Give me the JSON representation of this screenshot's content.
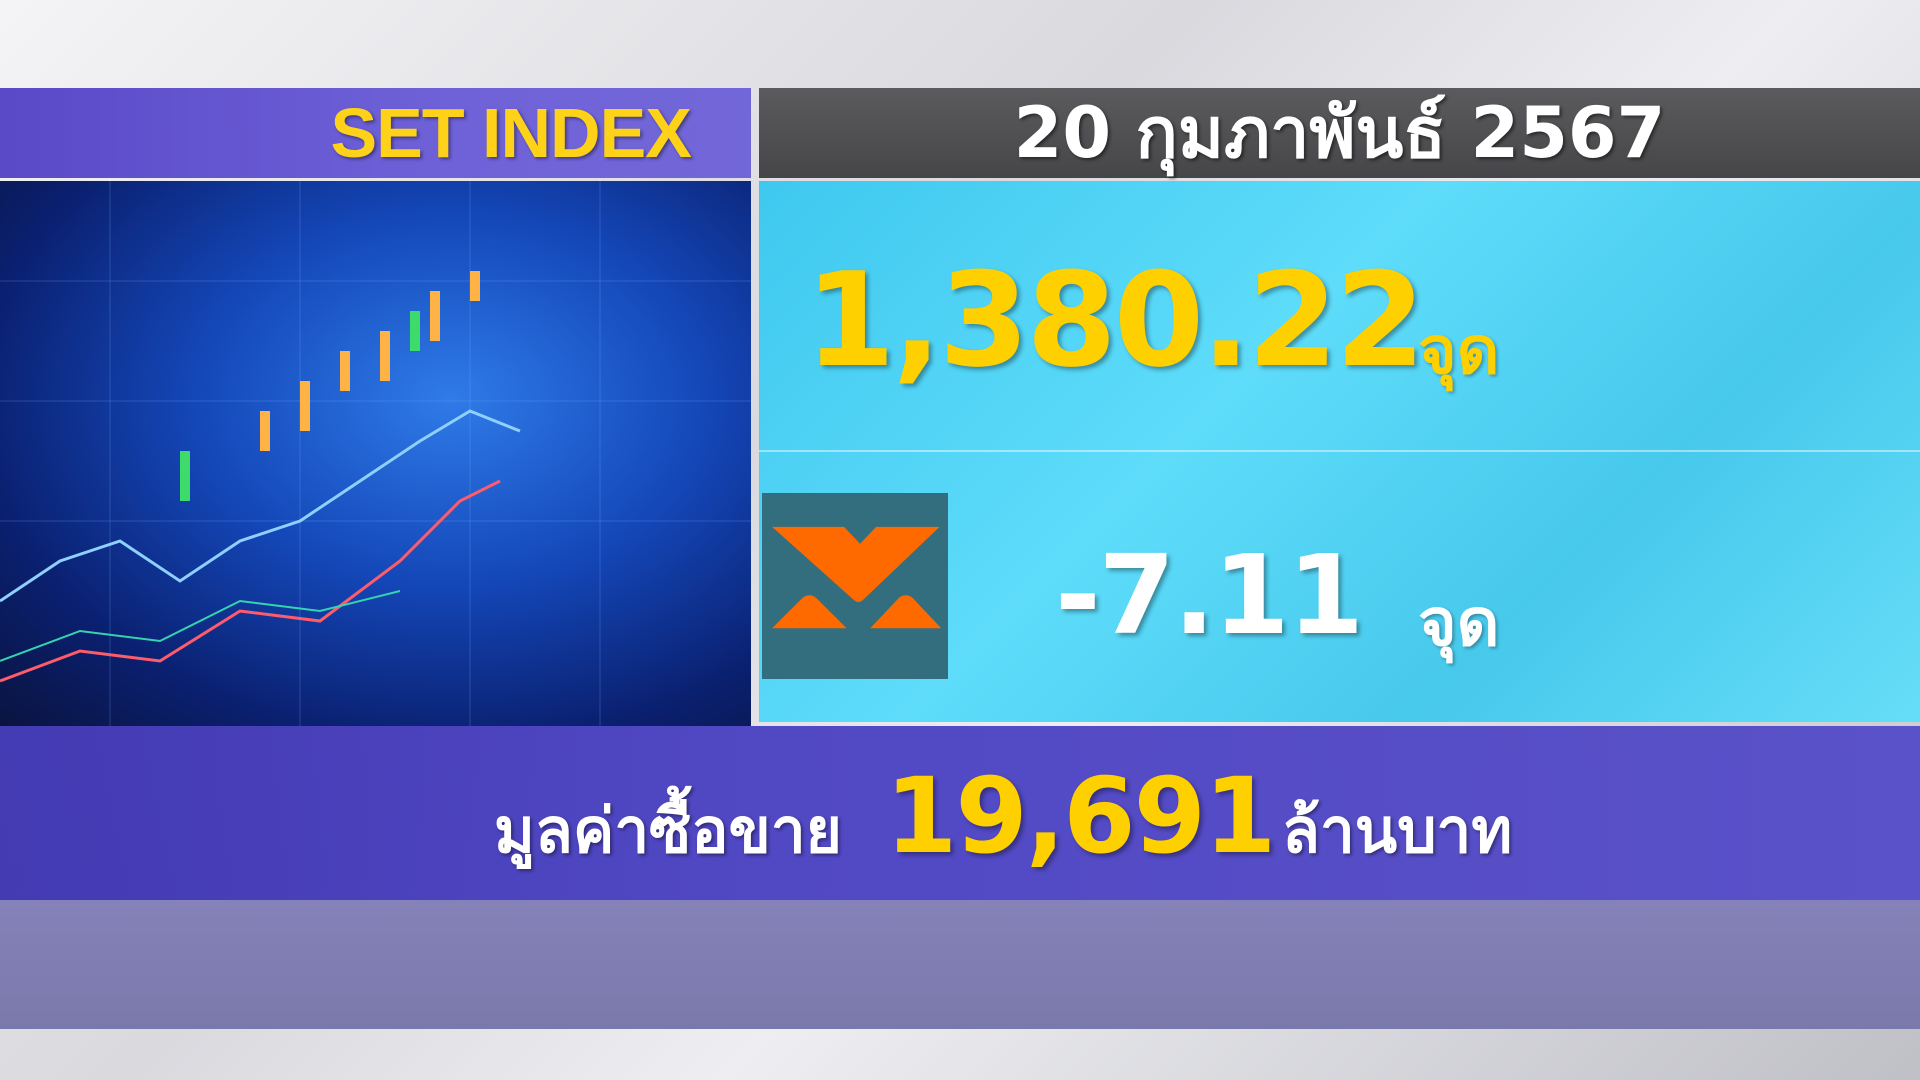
{
  "header": {
    "title": "SET INDEX",
    "date": "20 กุมภาพันธ์ 2567"
  },
  "index": {
    "value": "1,380.22",
    "unit": "จุด"
  },
  "change": {
    "value": "-7.11",
    "unit": "จุด",
    "direction_icon": "down-arrow-icon",
    "icon_color": "#ff6a00",
    "icon_bg": "#336e7e"
  },
  "volume": {
    "label": "มูลค่าซื้อขาย",
    "value": "19,691",
    "unit": "ล้านบาท"
  },
  "colors": {
    "accent_yellow": "#ffd000",
    "panel_cyan": "#4fd3f5",
    "bar_purple": "#5a4fc8"
  }
}
